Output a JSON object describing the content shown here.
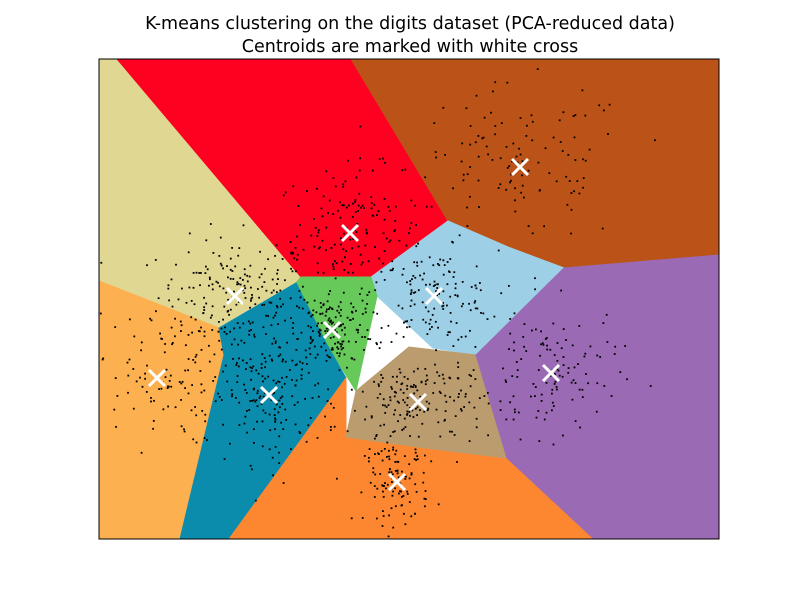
{
  "chart_data": {
    "type": "scatter",
    "title": "K-means clustering on the digits dataset (PCA-reduced data)",
    "subtitle": "Centroids are marked with white cross",
    "xlabel": "",
    "ylabel": "",
    "xlim": [
      0,
      620
    ],
    "ylim": [
      0,
      480
    ],
    "x_ticks": "none",
    "y_ticks": "none",
    "grid": false,
    "legend": "none",
    "region_colors": [
      "#e0d792",
      "#fe0020",
      "#bb5318",
      "#9dd0e7",
      "#66c95a",
      "#fdb050",
      "#0b8cad",
      "#fd8731",
      "#bb9c6e",
      "#9a6ab5"
    ],
    "centroid_color": "#ffffff",
    "point_color": "#000000",
    "regions": [
      {
        "name": "cluster-1",
        "color": "#e0d792",
        "polygon": [
          [
            0,
            480
          ],
          [
            18,
            480
          ],
          [
            202,
            262
          ],
          [
            197,
            256
          ],
          [
            120,
            211
          ],
          [
            0,
            258
          ]
        ]
      },
      {
        "name": "cluster-2",
        "color": "#fe0020",
        "polygon": [
          [
            18,
            480
          ],
          [
            252,
            480
          ],
          [
            349,
            318
          ],
          [
            272,
            262
          ],
          [
            202,
            262
          ]
        ]
      },
      {
        "name": "cluster-3",
        "color": "#bb5318",
        "polygon": [
          [
            252,
            480
          ],
          [
            620,
            480
          ],
          [
            620,
            284
          ],
          [
            465,
            271
          ],
          [
            409,
            292
          ],
          [
            349,
            318
          ]
        ]
      },
      {
        "name": "cluster-4",
        "color": "#9dd0e7",
        "polygon": [
          [
            272,
            262
          ],
          [
            349,
            318
          ],
          [
            409,
            292
          ],
          [
            465,
            271
          ],
          [
            377,
            184
          ],
          [
            334,
            191
          ],
          [
            278,
            243
          ]
        ]
      },
      {
        "name": "cluster-5",
        "color": "#66c95a",
        "polygon": [
          [
            202,
            262
          ],
          [
            272,
            262
          ],
          [
            278,
            243
          ],
          [
            257,
            148
          ],
          [
            227,
            196
          ],
          [
            197,
            256
          ]
        ]
      },
      {
        "name": "cluster-6",
        "color": "#fdb050",
        "polygon": [
          [
            0,
            258
          ],
          [
            120,
            211
          ],
          [
            125,
            184
          ],
          [
            81,
            0
          ],
          [
            0,
            0
          ]
        ]
      },
      {
        "name": "cluster-7",
        "color": "#0b8cad",
        "polygon": [
          [
            120,
            211
          ],
          [
            197,
            256
          ],
          [
            227,
            196
          ],
          [
            247,
            161
          ],
          [
            130,
            0
          ],
          [
            81,
            0
          ],
          [
            125,
            184
          ]
        ]
      },
      {
        "name": "cluster-8",
        "color": "#fd8731",
        "polygon": [
          [
            130,
            0
          ],
          [
            495,
            0
          ],
          [
            408,
            81
          ],
          [
            334,
            90
          ],
          [
            247,
            102
          ],
          [
            247,
            161
          ]
        ]
      },
      {
        "name": "cluster-9",
        "color": "#bb9c6e",
        "polygon": [
          [
            247,
            102
          ],
          [
            334,
            90
          ],
          [
            408,
            81
          ],
          [
            377,
            184
          ],
          [
            310,
            192
          ],
          [
            257,
            148
          ]
        ]
      },
      {
        "name": "cluster-10",
        "color": "#9a6ab5",
        "polygon": [
          [
            408,
            81
          ],
          [
            495,
            0
          ],
          [
            620,
            0
          ],
          [
            620,
            284
          ],
          [
            465,
            271
          ],
          [
            377,
            184
          ]
        ]
      }
    ],
    "centroids": [
      {
        "x": 136,
        "y": 243
      },
      {
        "x": 251,
        "y": 306
      },
      {
        "x": 421,
        "y": 372
      },
      {
        "x": 335,
        "y": 243
      },
      {
        "x": 233,
        "y": 209
      },
      {
        "x": 58,
        "y": 161
      },
      {
        "x": 170,
        "y": 144
      },
      {
        "x": 298,
        "y": 57
      },
      {
        "x": 319,
        "y": 137
      },
      {
        "x": 452,
        "y": 166
      }
    ],
    "point_clusters": [
      {
        "cx": 136,
        "cy": 243,
        "sx": 48,
        "sy": 36,
        "n": 190
      },
      {
        "cx": 251,
        "cy": 306,
        "sx": 46,
        "sy": 40,
        "n": 160
      },
      {
        "cx": 421,
        "cy": 372,
        "sx": 70,
        "sy": 50,
        "n": 120
      },
      {
        "cx": 335,
        "cy": 243,
        "sx": 40,
        "sy": 28,
        "n": 130
      },
      {
        "cx": 233,
        "cy": 209,
        "sx": 26,
        "sy": 26,
        "n": 150
      },
      {
        "cx": 58,
        "cy": 161,
        "sx": 42,
        "sy": 42,
        "n": 100
      },
      {
        "cx": 170,
        "cy": 144,
        "sx": 36,
        "sy": 42,
        "n": 170
      },
      {
        "cx": 298,
        "cy": 57,
        "sx": 20,
        "sy": 26,
        "n": 110
      },
      {
        "cx": 319,
        "cy": 137,
        "sx": 44,
        "sy": 30,
        "n": 170
      },
      {
        "cx": 452,
        "cy": 166,
        "sx": 42,
        "sy": 40,
        "n": 120
      }
    ]
  }
}
